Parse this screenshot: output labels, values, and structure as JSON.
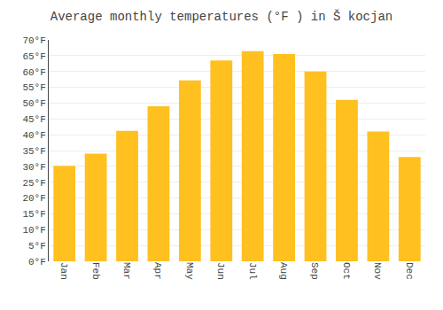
{
  "chart_data": {
    "type": "bar",
    "title": "Average monthly temperatures (°F ) in Š kocjan",
    "categories": [
      "Jan",
      "Feb",
      "Mar",
      "Apr",
      "May",
      "Jun",
      "Jul",
      "Aug",
      "Sep",
      "Oct",
      "Nov",
      "Dec"
    ],
    "values": [
      30.2,
      34.0,
      41.2,
      49.0,
      57.2,
      63.5,
      66.4,
      65.5,
      60.0,
      51.0,
      41.0,
      33.0
    ],
    "color": "#FFC020",
    "ylim": [
      0,
      70
    ],
    "yticks": [
      {
        "value": 0,
        "label": "0°F"
      },
      {
        "value": 5,
        "label": "5°F"
      },
      {
        "value": 10,
        "label": "10°F"
      },
      {
        "value": 15,
        "label": "15°F"
      },
      {
        "value": 20,
        "label": "20°F"
      },
      {
        "value": 25,
        "label": "25°F"
      },
      {
        "value": 30,
        "label": "30°F"
      },
      {
        "value": 35,
        "label": "35°F"
      },
      {
        "value": 40,
        "label": "40°F"
      },
      {
        "value": 45,
        "label": "45°F"
      },
      {
        "value": 50,
        "label": "50°F"
      },
      {
        "value": 55,
        "label": "55°F"
      },
      {
        "value": 60,
        "label": "60°F"
      },
      {
        "value": 65,
        "label": "65°F"
      },
      {
        "value": 70,
        "label": "70°F"
      }
    ],
    "grid": true
  }
}
